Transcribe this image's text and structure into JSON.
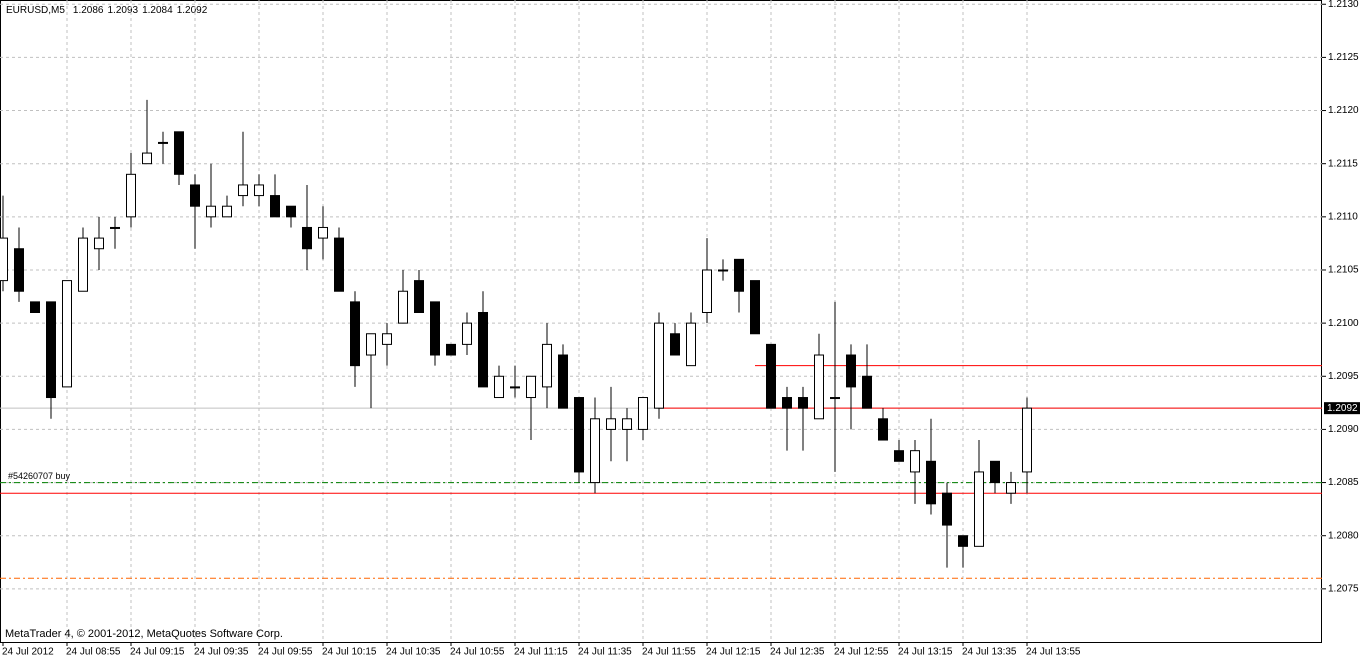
{
  "chart_data": {
    "type": "candlestick",
    "title": "EURUSD,M5",
    "footer": "MetaTrader 4, © 2001-2012, MetaQuotes Software Corp.",
    "categories": [
      "24 Jul 2012",
      null,
      null,
      null,
      "24 Jul 08:55",
      null,
      null,
      null,
      "24 Jul 09:15",
      null,
      null,
      null,
      "24 Jul 09:35",
      null,
      null,
      null,
      "24 Jul 09:55",
      null,
      null,
      null,
      "24 Jul 10:15",
      null,
      null,
      null,
      "24 Jul 10:35",
      null,
      null,
      null,
      "24 Jul 10:55",
      null,
      null,
      null,
      "24 Jul 11:15",
      null,
      null,
      null,
      "24 Jul 11:35",
      null,
      null,
      null,
      "24 Jul 11:55",
      null,
      null,
      null,
      "24 Jul 12:15",
      null,
      null,
      null,
      "24 Jul 12:35",
      null,
      null,
      null,
      "24 Jul 12:55",
      null,
      null,
      null,
      "24 Jul 13:15",
      null,
      null,
      null,
      "24 Jul 13:35",
      null,
      null,
      null,
      "24 Jul 13:55"
    ],
    "open": [
      1.2104,
      1.2107,
      1.2102,
      1.2102,
      1.2094,
      1.2103,
      1.2107,
      1.2109,
      1.211,
      1.2115,
      1.2117,
      1.2118,
      1.2113,
      1.211,
      1.211,
      1.2112,
      1.2112,
      1.2112,
      1.2111,
      1.2109,
      1.2108,
      1.2108,
      1.2102,
      1.2097,
      1.2098,
      1.21,
      1.2104,
      1.2102,
      1.2098,
      1.2098,
      1.2101,
      1.2093,
      1.2094,
      1.2093,
      1.2094,
      1.2097,
      1.2093,
      1.2085,
      1.209,
      1.209,
      1.209,
      1.2092,
      1.2099,
      1.2096,
      1.2101,
      1.2105,
      1.2106,
      1.2104,
      1.2098,
      1.2093,
      1.2093,
      1.2091,
      1.2093,
      1.2097,
      1.2095,
      1.2091,
      1.2088,
      1.2086,
      1.2087,
      1.2084,
      1.208,
      1.2079,
      1.2087,
      1.2084,
      1.2086
    ],
    "high": [
      1.2112,
      1.2109,
      1.2102,
      1.2102,
      1.2104,
      1.2109,
      1.211,
      1.211,
      1.2116,
      1.2121,
      1.2118,
      1.2118,
      1.2114,
      1.2115,
      1.2112,
      1.2118,
      1.2114,
      1.2114,
      1.2111,
      1.2113,
      1.2111,
      1.2109,
      1.2103,
      1.2099,
      1.21,
      1.2105,
      1.2105,
      1.2102,
      1.2098,
      1.2101,
      1.2103,
      1.2096,
      1.2096,
      1.2095,
      1.21,
      1.2098,
      1.2093,
      1.2093,
      1.2094,
      1.2092,
      1.2093,
      1.2101,
      1.21,
      1.2101,
      1.2108,
      1.2106,
      1.2106,
      1.2104,
      1.2098,
      1.2094,
      1.2094,
      1.2099,
      1.2102,
      1.2098,
      1.2098,
      1.2092,
      1.2089,
      1.2089,
      1.2091,
      1.2085,
      1.208,
      1.2089,
      1.2087,
      1.2086,
      1.2093
    ],
    "low": [
      1.2103,
      1.2102,
      1.2101,
      1.2091,
      1.2094,
      1.2103,
      1.2105,
      1.2107,
      1.2109,
      1.2115,
      1.2115,
      1.2113,
      1.2107,
      1.2109,
      1.211,
      1.2111,
      1.2111,
      1.211,
      1.2109,
      1.2105,
      1.2106,
      1.2103,
      1.2094,
      1.2092,
      1.2096,
      1.21,
      1.2101,
      1.2096,
      1.2097,
      1.2097,
      1.2094,
      1.2093,
      1.2093,
      1.2089,
      1.2092,
      1.2092,
      1.2085,
      1.2084,
      1.2087,
      1.2087,
      1.2089,
      1.2091,
      1.2097,
      1.2096,
      1.21,
      1.2104,
      1.2101,
      1.2099,
      1.2092,
      1.2088,
      1.2088,
      1.2091,
      1.2086,
      1.209,
      1.2092,
      1.2089,
      1.2087,
      1.2083,
      1.2082,
      1.2077,
      1.2077,
      1.2079,
      1.2084,
      1.2083,
      1.2084
    ],
    "close": [
      1.2108,
      1.2103,
      1.2101,
      1.2093,
      1.2104,
      1.2108,
      1.2108,
      1.2109,
      1.2114,
      1.2116,
      1.2117,
      1.2114,
      1.2111,
      1.2111,
      1.2111,
      1.2113,
      1.2113,
      1.211,
      1.211,
      1.2107,
      1.2109,
      1.2103,
      1.2096,
      1.2099,
      1.2099,
      1.2103,
      1.2101,
      1.2097,
      1.2097,
      1.21,
      1.2094,
      1.2095,
      1.2094,
      1.2095,
      1.2098,
      1.2092,
      1.2086,
      1.2091,
      1.2091,
      1.2091,
      1.2093,
      1.21,
      1.2097,
      1.21,
      1.2105,
      1.2105,
      1.2103,
      1.2099,
      1.2092,
      1.2092,
      1.2092,
      1.2097,
      1.2093,
      1.2094,
      1.2092,
      1.2089,
      1.2087,
      1.2088,
      1.2083,
      1.2081,
      1.2079,
      1.2086,
      1.2085,
      1.2085,
      1.2092
    ],
    "bull_color": "#ffffff",
    "bear_color": "#000000",
    "ylim": [
      1.207,
      1.21304
    ],
    "yticks": [
      1.2075,
      {
        "value": 1.208,
        "label": "1.2080"
      },
      1.2085,
      {
        "value": 1.209,
        "label": "1.2090"
      },
      1.2095,
      {
        "value": 1.21,
        "label": "1.2100"
      },
      1.2105,
      {
        "value": 1.211,
        "label": "1.2110"
      },
      1.2115,
      {
        "value": 1.212,
        "label": "1.2120"
      },
      1.2125,
      {
        "value": 1.213,
        "label": "1.2130"
      }
    ],
    "grid": true,
    "levels": [
      {
        "value": 1.2092,
        "color": "#c0c0c0",
        "style": "solid"
      },
      {
        "value": 1.2085,
        "color": "#008000",
        "style": "dashdot",
        "label": "#54260707 buy"
      },
      {
        "value": 1.2084,
        "color": "#ff0000",
        "style": "solid"
      },
      {
        "value": 1.2076,
        "color": "#ff6600",
        "style": "dashdot"
      },
      {
        "value": 1.2092,
        "color": "#ff0000",
        "style": "solid",
        "start": 41
      },
      {
        "value": 1.2096,
        "color": "#ff0000",
        "style": "solid",
        "start": 47
      }
    ]
  }
}
